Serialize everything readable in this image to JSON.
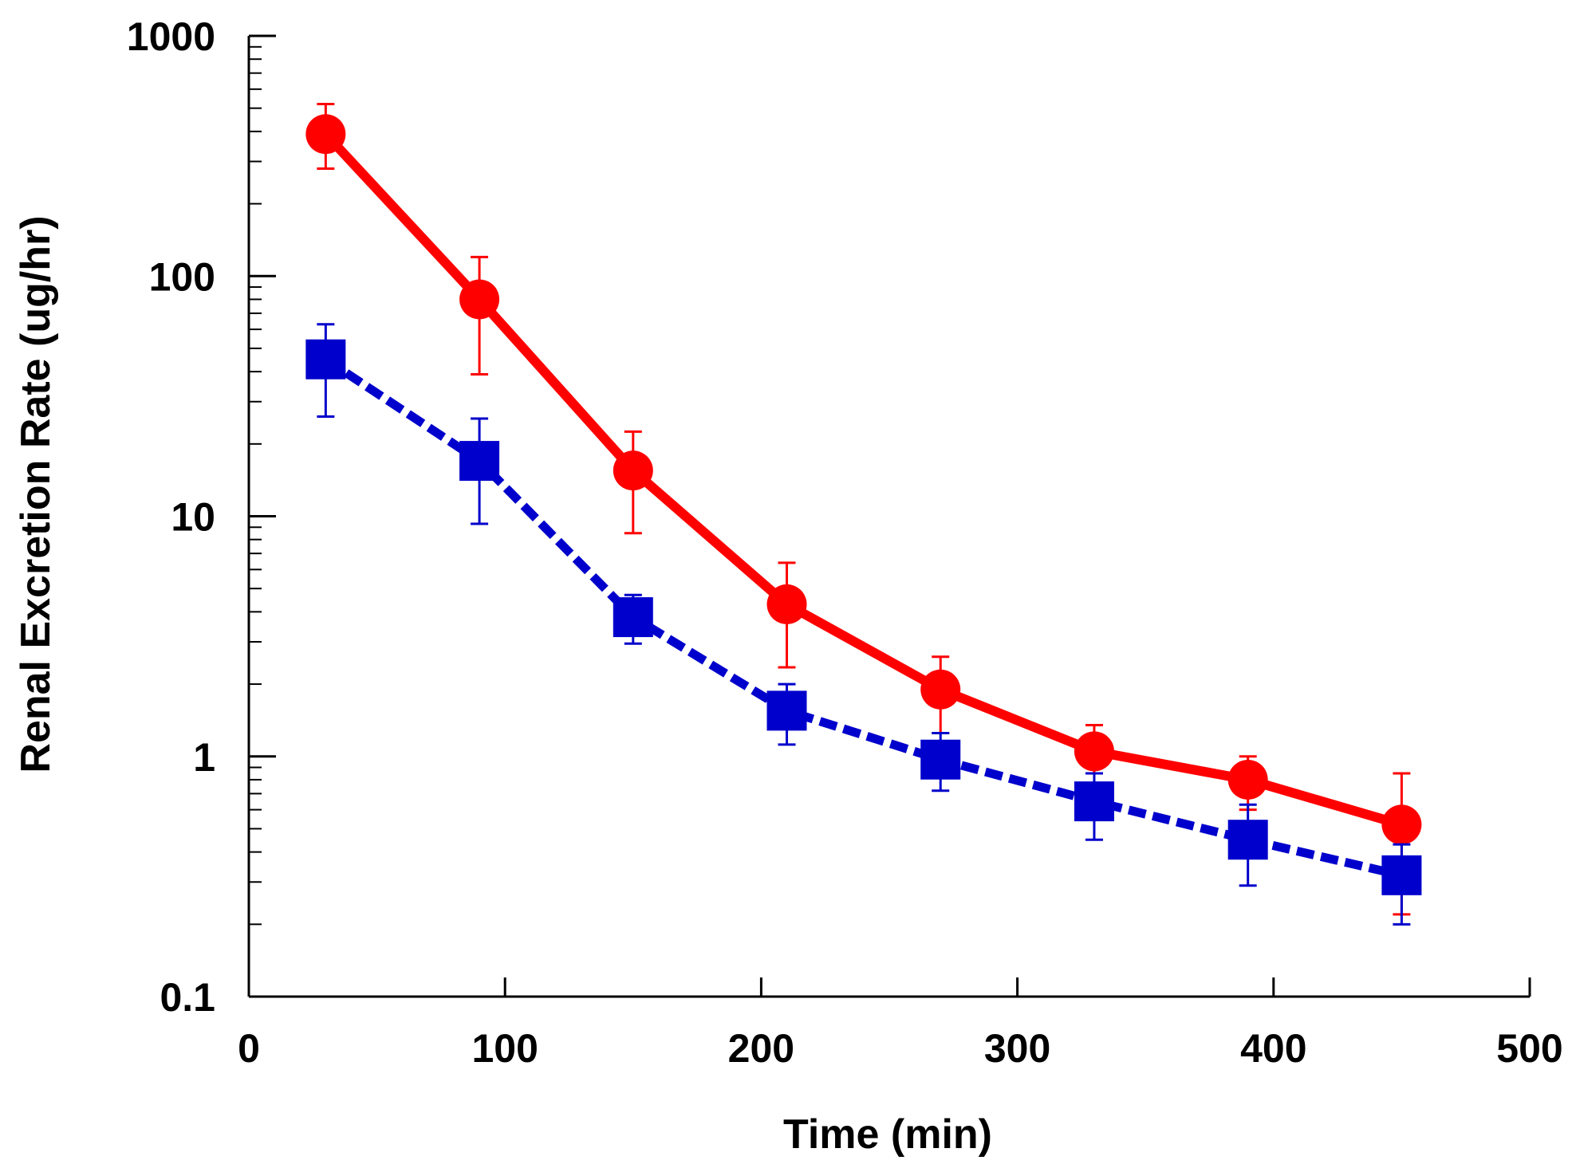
{
  "chart_data": {
    "type": "line",
    "title": "",
    "xlabel": "Time (min)",
    "ylabel": "Renal Excretion Rate (ug/hr)",
    "xlim": [
      0,
      500
    ],
    "ylim": [
      0.1,
      1000
    ],
    "yscale": "log",
    "grid": false,
    "legend": "none",
    "x_ticks": [
      "0",
      "100",
      "200",
      "300",
      "400",
      "500"
    ],
    "y_ticks": [
      "0.1",
      "1",
      "10",
      "100",
      "1000"
    ],
    "series": [
      {
        "color": "#ff0000",
        "marker": "circle",
        "line_style": "solid",
        "x": [
          30,
          90,
          150,
          210,
          270,
          330,
          390,
          450
        ],
        "y": [
          390,
          80,
          15.5,
          4.3,
          1.9,
          1.05,
          0.8,
          0.52
        ],
        "err_low": [
          280,
          39,
          8.5,
          2.35,
          1.25,
          0.85,
          0.6,
          0.22
        ],
        "err_high": [
          520,
          120,
          22.5,
          6.4,
          2.6,
          1.35,
          1.0,
          0.85
        ]
      },
      {
        "color": "#0000cc",
        "marker": "square",
        "line_style": "dashed",
        "x": [
          30,
          90,
          150,
          210,
          270,
          330,
          390,
          450
        ],
        "y": [
          45,
          17,
          3.8,
          1.55,
          0.97,
          0.65,
          0.45,
          0.32
        ],
        "err_low": [
          26,
          9.3,
          2.95,
          1.12,
          0.72,
          0.45,
          0.29,
          0.2
        ],
        "err_high": [
          63,
          25.5,
          4.7,
          2.0,
          1.25,
          0.85,
          0.63,
          0.43
        ]
      }
    ]
  }
}
